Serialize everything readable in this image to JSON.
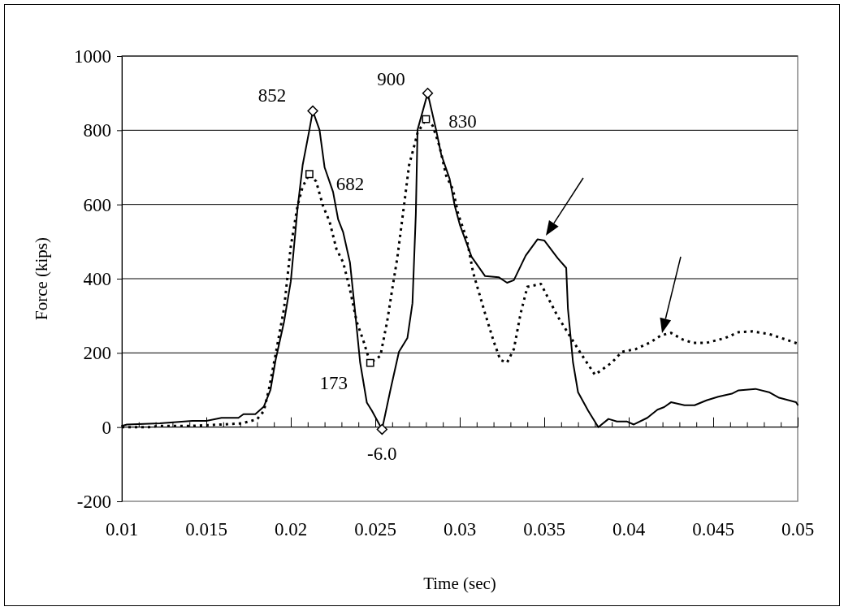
{
  "chart_data": {
    "type": "line",
    "xlabel": "Time (sec)",
    "ylabel": "Force (kips)",
    "xlim": [
      0.01,
      0.05
    ],
    "ylim": [
      -200,
      1000
    ],
    "xticks": [
      0.01,
      {
        "value": 0.011,
        "label": null
      },
      {
        "value": 0.012,
        "label": null
      },
      {
        "value": 0.013,
        "label": null
      },
      {
        "value": 0.014,
        "label": null
      },
      0.015,
      {
        "value": 0.016,
        "label": null
      },
      {
        "value": 0.017,
        "label": null
      },
      {
        "value": 0.018,
        "label": null
      },
      {
        "value": 0.019,
        "label": null
      },
      0.02,
      {
        "value": 0.021,
        "label": null
      },
      {
        "value": 0.022,
        "label": null
      },
      {
        "value": 0.023,
        "label": null
      },
      {
        "value": 0.024,
        "label": null
      },
      0.025,
      {
        "value": 0.026,
        "label": null
      },
      {
        "value": 0.027,
        "label": null
      },
      {
        "value": 0.028,
        "label": null
      },
      {
        "value": 0.029,
        "label": null
      },
      0.03,
      {
        "value": 0.031,
        "label": null
      },
      {
        "value": 0.032,
        "label": null
      },
      {
        "value": 0.033,
        "label": null
      },
      {
        "value": 0.034,
        "label": null
      },
      0.035,
      {
        "value": 0.036,
        "label": null
      },
      {
        "value": 0.037,
        "label": null
      },
      {
        "value": 0.038,
        "label": null
      },
      {
        "value": 0.039,
        "label": null
      },
      0.04,
      {
        "value": 0.041,
        "label": null
      },
      {
        "value": 0.042,
        "label": null
      },
      {
        "value": 0.043,
        "label": null
      },
      {
        "value": 0.044,
        "label": null
      },
      0.045,
      {
        "value": 0.046,
        "label": null
      },
      {
        "value": 0.047,
        "label": null
      },
      {
        "value": 0.048,
        "label": null
      },
      {
        "value": 0.049,
        "label": null
      },
      0.05
    ],
    "yticks": [
      -200,
      0,
      200,
      400,
      600,
      800,
      1000
    ],
    "grid": "y",
    "marker": "none",
    "series": [
      {
        "color": "#000000",
        "line_style": "solid",
        "x": [
          0.01,
          0.0103,
          0.01225,
          0.01417,
          0.015,
          0.0159,
          0.0169,
          0.0172,
          0.0179,
          0.0184,
          0.0188,
          0.0191,
          0.0196,
          0.02,
          0.0204,
          0.0207,
          0.0211,
          0.0213,
          0.0217,
          0.022,
          0.0225,
          0.0228,
          0.0231,
          0.0235,
          0.0238,
          0.0241,
          0.0245,
          0.0248,
          0.0254,
          0.0259,
          0.0264,
          0.0269,
          0.0272,
          0.0274,
          0.0275,
          0.0281,
          0.0286,
          0.0289,
          0.0294,
          0.0297,
          0.03,
          0.0307,
          0.0315,
          0.0323,
          0.0328,
          0.0332,
          0.0339,
          0.0346,
          0.035,
          0.0358,
          0.0363,
          0.0364,
          0.0367,
          0.037,
          0.0376,
          0.0382,
          0.0388,
          0.0393,
          0.0399,
          0.0403,
          0.0411,
          0.0417,
          0.0421,
          0.0425,
          0.0433,
          0.0439,
          0.0446,
          0.0453,
          0.0461,
          0.0465,
          0.0475,
          0.0483,
          0.0489,
          0.0499,
          0.05
        ],
        "values": [
          3,
          7,
          10,
          17,
          17,
          25,
          25,
          35,
          35,
          55,
          101,
          181,
          284,
          393,
          590,
          706,
          801,
          852,
          801,
          700,
          634,
          560,
          525,
          444,
          313,
          175,
          66,
          44,
          -6,
          101,
          203,
          240,
          334,
          575,
          801,
          900,
          801,
          735,
          669,
          597,
          546,
          459,
          407,
          404,
          389,
          396,
          462,
          506,
          503,
          455,
          429,
          320,
          175,
          94,
          44,
          0,
          22,
          15,
          15,
          7,
          25,
          47,
          54,
          67,
          59,
          59,
          72,
          82,
          90,
          99,
          103,
          94,
          79,
          67,
          60
        ]
      },
      {
        "color": "#000000",
        "line_style": "dotted",
        "x": [
          0.01,
          0.0116,
          0.0122,
          0.014,
          0.0159,
          0.0171,
          0.018,
          0.0184,
          0.0187,
          0.0191,
          0.0196,
          0.02,
          0.0204,
          0.0207,
          0.0211,
          0.0215,
          0.0219,
          0.0223,
          0.0227,
          0.0231,
          0.0235,
          0.0239,
          0.0243,
          0.0247,
          0.0253,
          0.0257,
          0.026,
          0.0263,
          0.0267,
          0.027,
          0.0273,
          0.0275,
          0.028,
          0.0284,
          0.0288,
          0.0292,
          0.0296,
          0.0299,
          0.0304,
          0.0308,
          0.0315,
          0.032,
          0.0324,
          0.0328,
          0.0332,
          0.0336,
          0.034,
          0.0348,
          0.0353,
          0.0358,
          0.0364,
          0.0372,
          0.038,
          0.039,
          0.0396,
          0.0404,
          0.0413,
          0.0419,
          0.0425,
          0.0432,
          0.0438,
          0.0446,
          0.0457,
          0.0465,
          0.0473,
          0.0483,
          0.0493,
          0.05
        ],
        "values": [
          0,
          0,
          3,
          3,
          7,
          10,
          21,
          43,
          101,
          196,
          320,
          487,
          597,
          648,
          682,
          662,
          597,
          553,
          480,
          444,
          371,
          284,
          232,
          173,
          192,
          284,
          371,
          455,
          597,
          706,
          757,
          793,
          830,
          812,
          757,
          677,
          640,
          575,
          509,
          415,
          306,
          232,
          181,
          174,
          210,
          306,
          378,
          386,
          342,
          298,
          254,
          196,
          141,
          174,
          203,
          210,
          229,
          247,
          254,
          236,
          227,
          227,
          240,
          256,
          258,
          251,
          236,
          225
        ]
      },
      {
        "type": "scatter",
        "color": "#000000",
        "marker": "diamond",
        "x": [
          0.0213,
          0.0254,
          0.0281
        ],
        "values": [
          852,
          -6,
          900
        ],
        "value_labels": [
          "852",
          "-6.0",
          "900"
        ]
      },
      {
        "type": "scatter",
        "color": "#000000",
        "marker": "square",
        "x": [
          0.0211,
          0.0247,
          0.028
        ],
        "values": [
          682,
          173,
          830
        ],
        "value_labels": [
          "682",
          "173",
          "830"
        ]
      }
    ]
  }
}
